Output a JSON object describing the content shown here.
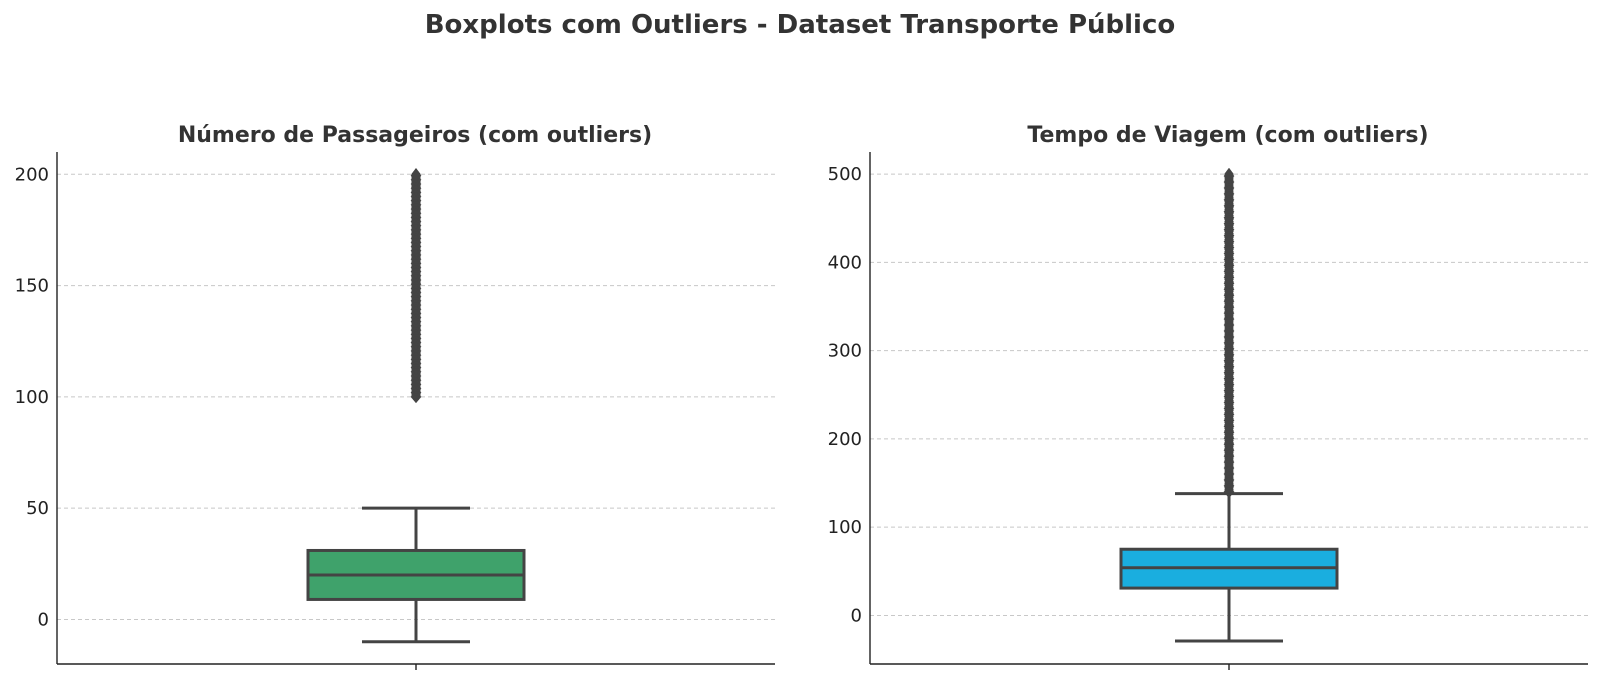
{
  "figure": {
    "title": "Boxplots com Outliers - Dataset Transporte Público"
  },
  "chart_data": [
    {
      "type": "boxplot",
      "title": "Número de Passageiros (com outliers)",
      "xlabel": "",
      "ylabel": "",
      "ylim": [
        -20,
        210
      ],
      "yticks": [
        0,
        50,
        100,
        150,
        200
      ],
      "grid": true,
      "box_color": "#3fa26b",
      "line_color": "#444444",
      "box": {
        "whisker_low": -10,
        "q1": 9,
        "median": 20,
        "q3": 31,
        "whisker_high": 50
      },
      "outliers_range": [
        100,
        200
      ]
    },
    {
      "type": "boxplot",
      "title": "Tempo de Viagem (com outliers)",
      "xlabel": "",
      "ylabel": "",
      "ylim": [
        -55,
        525
      ],
      "yticks": [
        0,
        100,
        200,
        300,
        400,
        500
      ],
      "grid": true,
      "box_color": "#1aaedf",
      "line_color": "#444444",
      "box": {
        "whisker_low": -29,
        "q1": 31,
        "median": 54,
        "q3": 75,
        "whisker_high": 138
      },
      "outliers_range": [
        140,
        500
      ]
    }
  ]
}
